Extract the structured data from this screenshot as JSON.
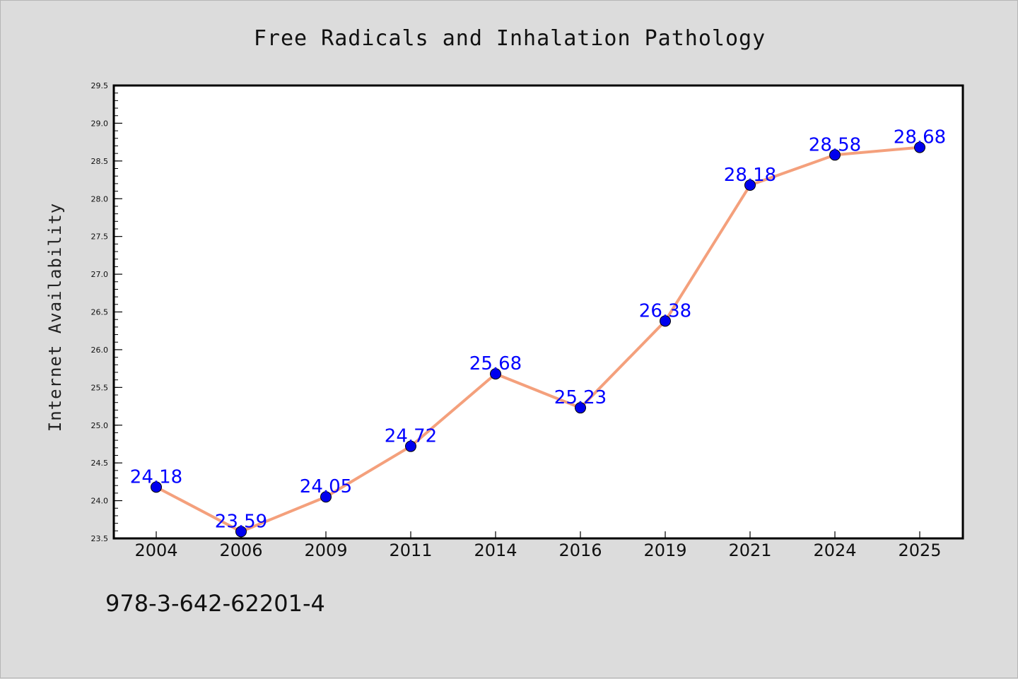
{
  "chart_data": {
    "type": "line",
    "title": "Free Radicals and Inhalation Pathology",
    "xlabel": "",
    "ylabel": "Internet Availability",
    "categories": [
      "2004",
      "2006",
      "2009",
      "2011",
      "2014",
      "2016",
      "2019",
      "2021",
      "2024",
      "2025"
    ],
    "series": [
      {
        "values": [
          24.18,
          23.59,
          24.05,
          24.72,
          25.68,
          25.23,
          26.38,
          28.18,
          28.58,
          28.68
        ]
      }
    ],
    "data_labels": [
      "24.18",
      "23.59",
      "24.05",
      "24.72",
      "25.68",
      "25.23",
      "26.38",
      "28.18",
      "28.58",
      "28.68"
    ],
    "ylim": [
      23.5,
      29.5
    ],
    "yticks": [
      "23.5",
      "24.0",
      "24.5",
      "25.0",
      "25.5",
      "26.0",
      "26.5",
      "27.0",
      "27.5",
      "28.0",
      "28.5",
      "29.0",
      "29.5"
    ],
    "grid": false,
    "legend": "none",
    "colors": {
      "line": "#f4a07c",
      "marker": "#0000ee",
      "marker_edge": "#000000",
      "label": "#0000ff",
      "background": "#dcdcdc",
      "plot_area": "#ffffff"
    }
  },
  "footer": {
    "isbn": "978-3-642-62201-4"
  }
}
